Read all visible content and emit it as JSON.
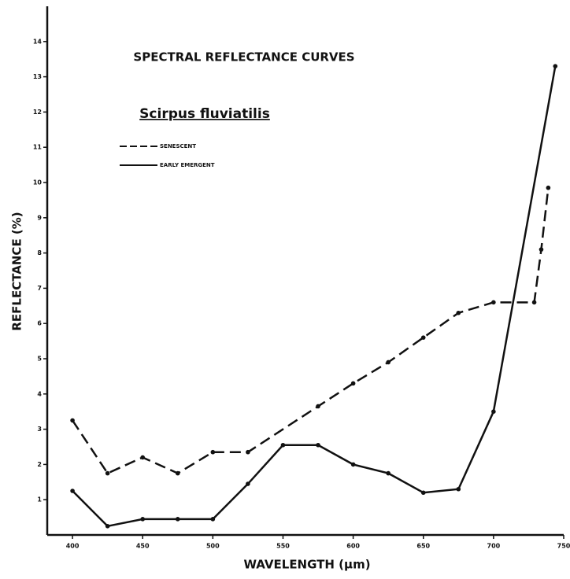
{
  "chart_data": {
    "type": "line",
    "title": "SPECTRAL REFLECTANCE CURVES",
    "subtitle": "Scirpus fluviatilis",
    "xlabel": "WAVELENGTH (µm)",
    "ylabel": "REFLECTANCE (%)",
    "xlim": [
      382,
      750
    ],
    "xticks": [
      400,
      450,
      500,
      550,
      600,
      650,
      700,
      750
    ],
    "ylim": [
      0,
      15
    ],
    "yticks": [
      1,
      2,
      3,
      4,
      5,
      6,
      7,
      8,
      9,
      10,
      11,
      12,
      13,
      14
    ],
    "series": [
      {
        "name": "SENESCENT",
        "color": "#111111",
        "style": "dashed",
        "x": [
          400,
          425,
          450,
          475,
          500,
          525,
          575,
          600,
          625,
          650,
          675,
          700,
          729,
          734,
          739
        ],
        "values": [
          3.25,
          1.75,
          2.2,
          1.75,
          2.35,
          2.35,
          3.65,
          4.3,
          4.9,
          5.6,
          6.3,
          6.6,
          6.6,
          8.1,
          9.85
        ]
      },
      {
        "name": "EARLY EMERGENT",
        "color": "#111111",
        "style": "solid",
        "x": [
          400,
          425,
          450,
          475,
          500,
          525,
          550,
          575,
          600,
          625,
          650,
          675,
          700,
          744
        ],
        "values": [
          1.25,
          0.25,
          0.45,
          0.45,
          0.45,
          1.45,
          2.55,
          2.55,
          2.0,
          1.75,
          1.2,
          1.3,
          3.5,
          13.3
        ]
      }
    ]
  }
}
